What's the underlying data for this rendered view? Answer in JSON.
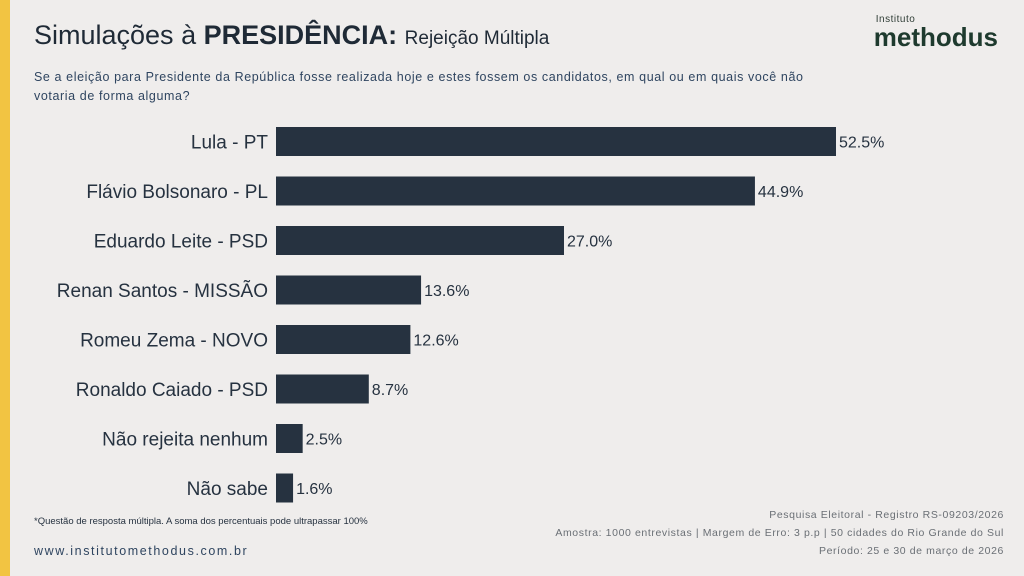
{
  "header": {
    "title_prefix": "Simulações à",
    "title_strong": "PRESIDÊNCIA:",
    "title_sub": "Rejeição Múltipla",
    "logo_small": "Instituto",
    "logo_big": "methodus"
  },
  "question": "Se a eleição para Presidente da República fosse realizada hoje e estes fossem os candidatos, em qual ou em quais você não votaria de forma alguma?",
  "colors": {
    "bar": "#263240",
    "accent": "#f2c442",
    "background": "#efedec"
  },
  "chart_data": {
    "type": "bar",
    "orientation": "horizontal",
    "title": "Simulações à PRESIDÊNCIA: Rejeição Múltipla",
    "categories": [
      "Lula - PT",
      "Flávio Bolsonaro - PL",
      "Eduardo Leite - PSD",
      "Renan Santos - MISSÃO",
      "Romeu Zema - NOVO",
      "Ronaldo Caiado - PSD",
      "Não rejeita nenhum",
      "Não sabe"
    ],
    "values": [
      52.5,
      44.9,
      27.0,
      13.6,
      12.6,
      8.7,
      2.5,
      1.6
    ],
    "value_labels": [
      "52.5%",
      "44.9%",
      "27.0%",
      "13.6%",
      "12.6%",
      "8.7%",
      "2.5%",
      "1.6%"
    ],
    "unit": "%",
    "xlim": [
      0,
      52.5
    ],
    "grid": false
  },
  "footer": {
    "footnote": "*Questão de resposta múltipla. A soma dos percentuais pode ultrapassar 100%",
    "website": "www.institutomethodus.com.br",
    "registry": "Pesquisa Eleitoral - Registro RS-09203/2026",
    "sample": "Amostra: 1000 entrevistas | Margem de Erro: 3 p.p | 50 cidades do Rio Grande do Sul",
    "period": "Período: 25 e 30 de março de 2026"
  }
}
